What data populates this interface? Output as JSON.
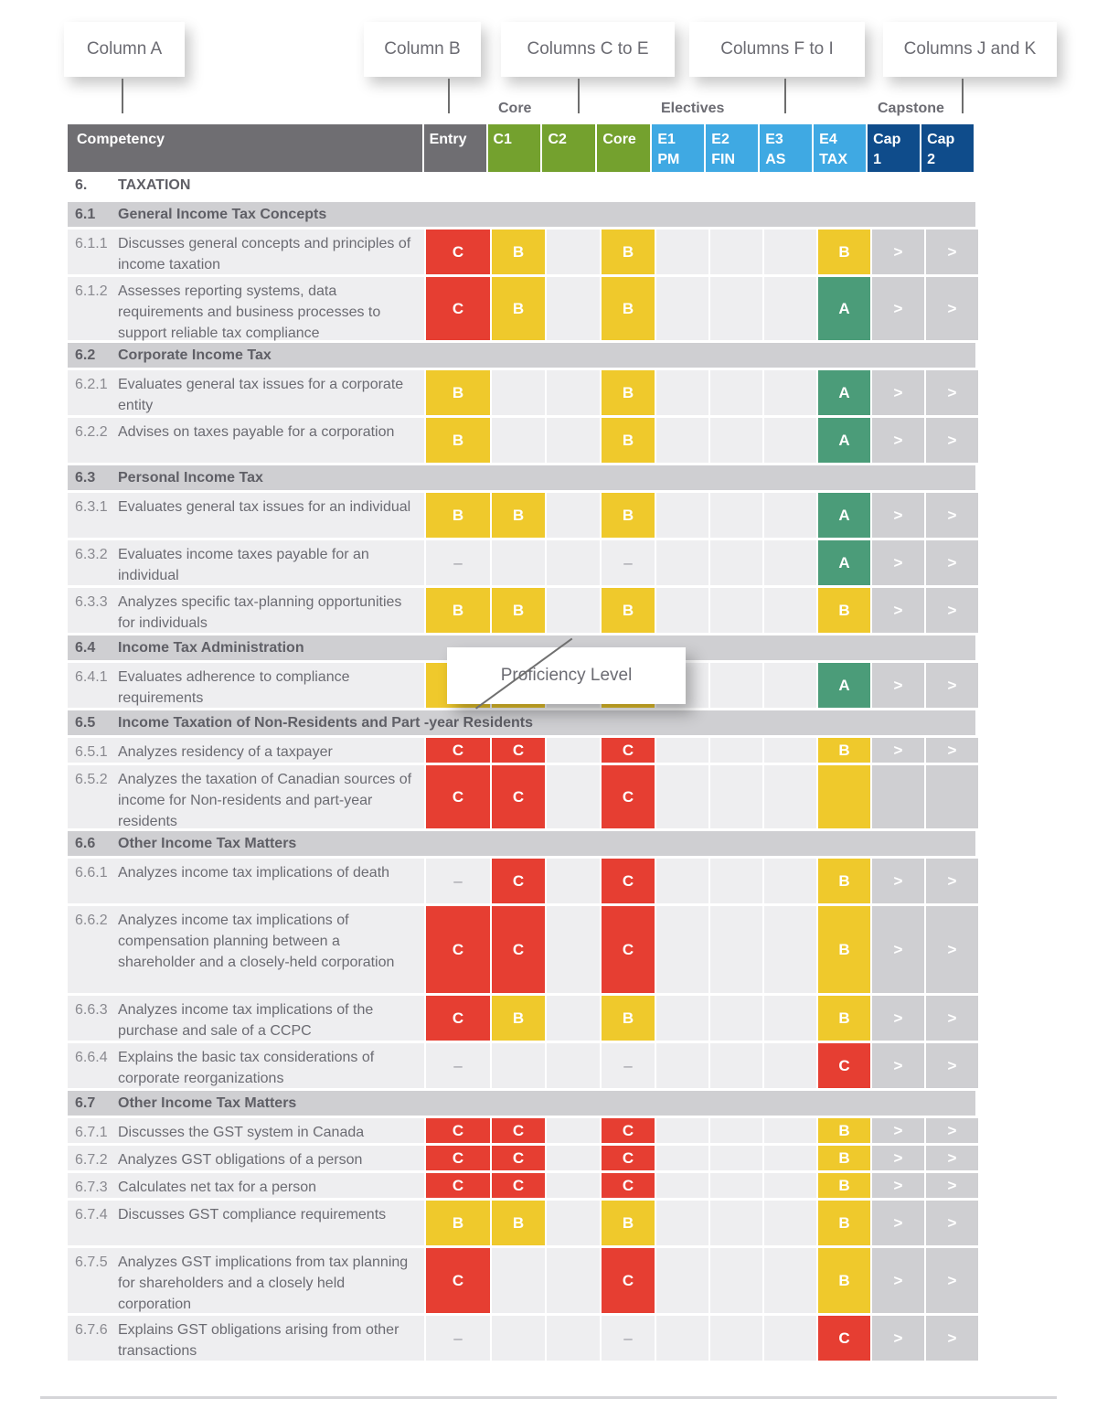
{
  "callouts": {
    "col_a": "Column A",
    "col_b": "Column B",
    "col_ce": "Columns C to E",
    "col_fi": "Columns F to I",
    "col_jk": "Columns J and K",
    "proficiency": "Proficiency Level"
  },
  "groups": {
    "core": "Core",
    "electives": "Electives",
    "capstone": "Capstone"
  },
  "header": {
    "competency": "Competency",
    "entry": "Entry",
    "c1": "C1",
    "c2": "C2",
    "core": "Core",
    "e1": "E1",
    "e1b": "PM",
    "e2": "E2",
    "e2b": "FIN",
    "e3": "E3",
    "e3b": "AS",
    "e4": "E4",
    "e4b": "TAX",
    "cap1": "Cap",
    "cap1b": "1",
    "cap2": "Cap",
    "cap2b": "2"
  },
  "colors": {
    "level_C": "#e63e32",
    "level_B": "#efc92c",
    "level_A": "#4b9c79",
    "header_gray": "#6f6e72",
    "header_core": "#74a12e",
    "header_elective": "#3fa9e3",
    "header_capstone": "#0f4c8b"
  },
  "section": {
    "num": "6.",
    "title": "TAXATION"
  },
  "subsections": [
    {
      "num": "6.1",
      "title": "General Income Tax Concepts"
    },
    {
      "num": "6.2",
      "title": "Corporate Income Tax"
    },
    {
      "num": "6.3",
      "title": "Personal Income Tax"
    },
    {
      "num": "6.4",
      "title": "Income Tax Administration"
    },
    {
      "num": "6.5",
      "title": "Income Taxation of Non-Residents and Part -year Residents"
    },
    {
      "num": "6.6",
      "title": "Other Income Tax Matters"
    },
    {
      "num": "6.7",
      "title": "Other Income Tax Matters"
    }
  ],
  "rows": [
    {
      "num": "6.1.1",
      "text": "Discusses general concepts and principles of income taxation",
      "levels": [
        "C",
        "B",
        "",
        "B",
        "",
        "",
        "",
        "B",
        ">",
        ">"
      ]
    },
    {
      "num": "6.1.2",
      "text": "Assesses reporting systems, data requirements and business processes to support reliable tax compliance",
      "levels": [
        "C",
        "B",
        "",
        "B",
        "",
        "",
        "",
        "A",
        ">",
        ">"
      ]
    },
    {
      "num": "6.2.1",
      "text": "Evaluates general tax issues for a corporate entity",
      "levels": [
        "B",
        "",
        "",
        "B",
        "",
        "",
        "",
        "A",
        ">",
        ">"
      ]
    },
    {
      "num": "6.2.2",
      "text": "Advises on taxes payable for a corporation",
      "levels": [
        "B",
        "",
        "",
        "B",
        "",
        "",
        "",
        "A",
        ">",
        ">"
      ]
    },
    {
      "num": "6.3.1",
      "text": "Evaluates general tax issues for an individual",
      "levels": [
        "B",
        "B",
        "",
        "B",
        "",
        "",
        "",
        "A",
        ">",
        ">"
      ]
    },
    {
      "num": "6.3.2",
      "text": "Evaluates income taxes payable for an individual",
      "levels": [
        "–",
        "",
        "",
        "–",
        "",
        "",
        "",
        "A",
        ">",
        ">"
      ]
    },
    {
      "num": "6.3.3",
      "text": "Analyzes specific tax-planning opportunities for individuals",
      "levels": [
        "B",
        "B",
        "",
        "B",
        "",
        "",
        "",
        "B",
        ">",
        ">"
      ]
    },
    {
      "num": "6.4.1",
      "text": "Evaluates adherence to compliance requirements",
      "levels": [
        "B",
        "B",
        "",
        "B",
        "",
        "",
        "",
        "A",
        ">",
        ">"
      ]
    },
    {
      "num": "6.5.1",
      "text": "Analyzes residency of a taxpayer",
      "levels": [
        "C",
        "C",
        "",
        "C",
        "",
        "",
        "",
        "B",
        ">",
        ">"
      ]
    },
    {
      "num": "6.5.2",
      "text": "Analyzes the taxation of Canadian sources of income for Non-residents and part-year residents",
      "levels": [
        "C",
        "C",
        "",
        "C",
        "",
        "",
        "",
        "B-empty",
        "",
        ""
      ]
    },
    {
      "num": "6.6.1",
      "text": "Analyzes income tax implications of death",
      "levels": [
        "–",
        "C",
        "",
        "C",
        "",
        "",
        "",
        "B",
        ">",
        ">"
      ]
    },
    {
      "num": "6.6.2",
      "text": "Analyzes income tax implications of compensation planning between a shareholder and a closely-held corporation",
      "levels": [
        "C",
        "C",
        "",
        "C",
        "",
        "",
        "",
        "B",
        ">",
        ">"
      ]
    },
    {
      "num": "6.6.3",
      "text": "Analyzes income tax implications of the purchase and sale of a CCPC",
      "levels": [
        "C",
        "B",
        "",
        "B",
        "",
        "",
        "",
        "B",
        ">",
        ">"
      ]
    },
    {
      "num": "6.6.4",
      "text": "Explains the basic tax considerations of corporate reorganizations",
      "levels": [
        "–",
        "",
        "",
        "–",
        "",
        "",
        "",
        "C",
        ">",
        ">"
      ]
    },
    {
      "num": "6.7.1",
      "text": "Discusses the GST system in Canada",
      "levels": [
        "C",
        "C",
        "",
        "C",
        "",
        "",
        "",
        "B",
        ">",
        ">"
      ]
    },
    {
      "num": "6.7.2",
      "text": "Analyzes GST obligations of a person",
      "levels": [
        "C",
        "C",
        "",
        "C",
        "",
        "",
        "",
        "B",
        ">",
        ">"
      ]
    },
    {
      "num": "6.7.3",
      "text": "Calculates net tax for a person",
      "levels": [
        "C",
        "C",
        "",
        "C",
        "",
        "",
        "",
        "B",
        ">",
        ">"
      ]
    },
    {
      "num": "6.7.4",
      "text": "Discusses GST compliance requirements",
      "levels": [
        "B",
        "B",
        "",
        "B",
        "",
        "",
        "",
        "B",
        ">",
        ">"
      ]
    },
    {
      "num": "6.7.5",
      "text": "Analyzes GST implications from tax planning for shareholders and a closely held corporation",
      "levels": [
        "C",
        "",
        "",
        "C",
        "",
        "",
        "",
        "B",
        ">",
        ">"
      ]
    },
    {
      "num": "6.7.6",
      "text": "Explains GST obligations arising from other transactions",
      "levels": [
        "–",
        "",
        "",
        "–",
        "",
        "",
        "",
        "C",
        ">",
        ">"
      ]
    }
  ]
}
